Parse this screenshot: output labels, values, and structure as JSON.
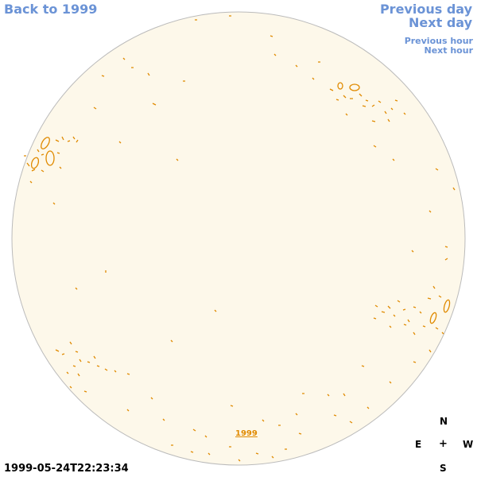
{
  "nav": {
    "back": "Back to 1999",
    "previous_day": "Previous day",
    "next_day": "Next day",
    "previous_hour": "Previous hour",
    "next_hour": "Next hour"
  },
  "timestamp": "1999-05-24T22:23:34",
  "year_link": "1999",
  "compass": {
    "north": "N",
    "east": "E",
    "center": "+",
    "west": "W",
    "south": "S"
  },
  "colors": {
    "disk_fill": "#fdf8ea",
    "disk_stroke": "#bbbbbb",
    "contour": "#e08a00",
    "link": "#6b93d6"
  }
}
